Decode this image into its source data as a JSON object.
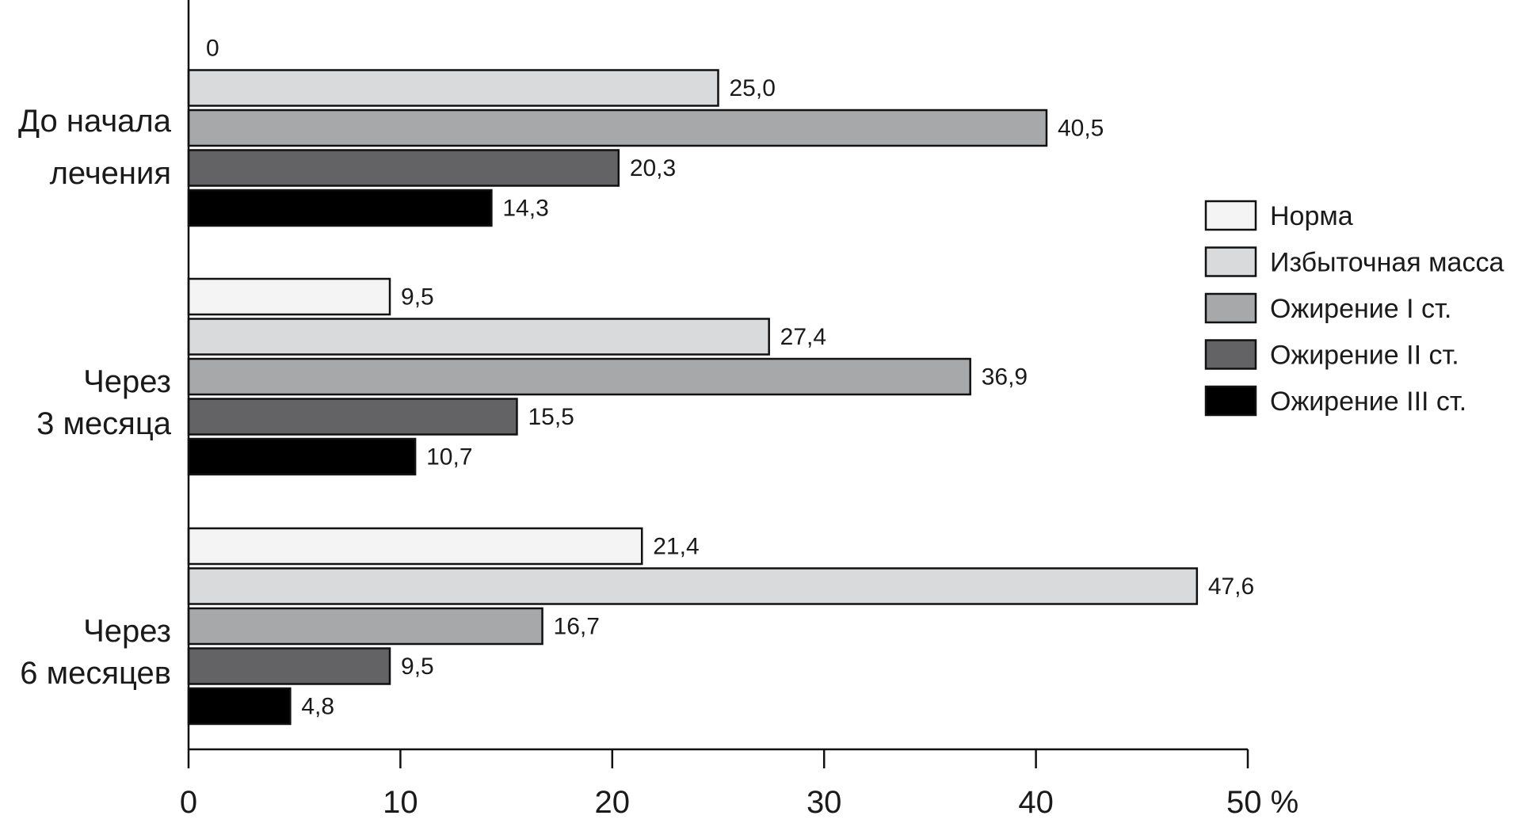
{
  "chart_data": {
    "type": "bar",
    "orientation": "horizontal",
    "categories": [
      [
        "До начала",
        "лечения"
      ],
      [
        "Через",
        "3 месяца"
      ],
      [
        "Через",
        "6 месяцев"
      ]
    ],
    "series": [
      {
        "name": "Норма",
        "color": "#f4f4f4",
        "values": [
          0,
          9.5,
          21.4
        ],
        "labels": [
          "0",
          "9,5",
          "21,4"
        ]
      },
      {
        "name": "Избыточная масса",
        "color": "#d9dadb",
        "values": [
          25.0,
          27.4,
          47.6
        ],
        "labels": [
          "25,0",
          "27,4",
          "47,6"
        ]
      },
      {
        "name": "Ожирение I ст.",
        "color": "#a7a8aa",
        "values": [
          40.5,
          36.9,
          16.7
        ],
        "labels": [
          "40,5",
          "36,9",
          "16,7"
        ]
      },
      {
        "name": "Ожирение II ст.",
        "color": "#636366",
        "values": [
          20.3,
          15.5,
          9.5
        ],
        "labels": [
          "20,3",
          "15,5",
          "9,5"
        ]
      },
      {
        "name": "Ожирение III ст.",
        "color": "#000000",
        "values": [
          14.3,
          10.7,
          4.8
        ],
        "labels": [
          "14,3",
          "10,7",
          "4,8"
        ]
      }
    ],
    "x_ticks": [
      "0",
      "10",
      "20",
      "30",
      "40",
      "50 %"
    ],
    "xlim": [
      0,
      50
    ],
    "title": "",
    "xlabel": "",
    "ylabel": "",
    "grid": false,
    "legend_position": "right"
  }
}
